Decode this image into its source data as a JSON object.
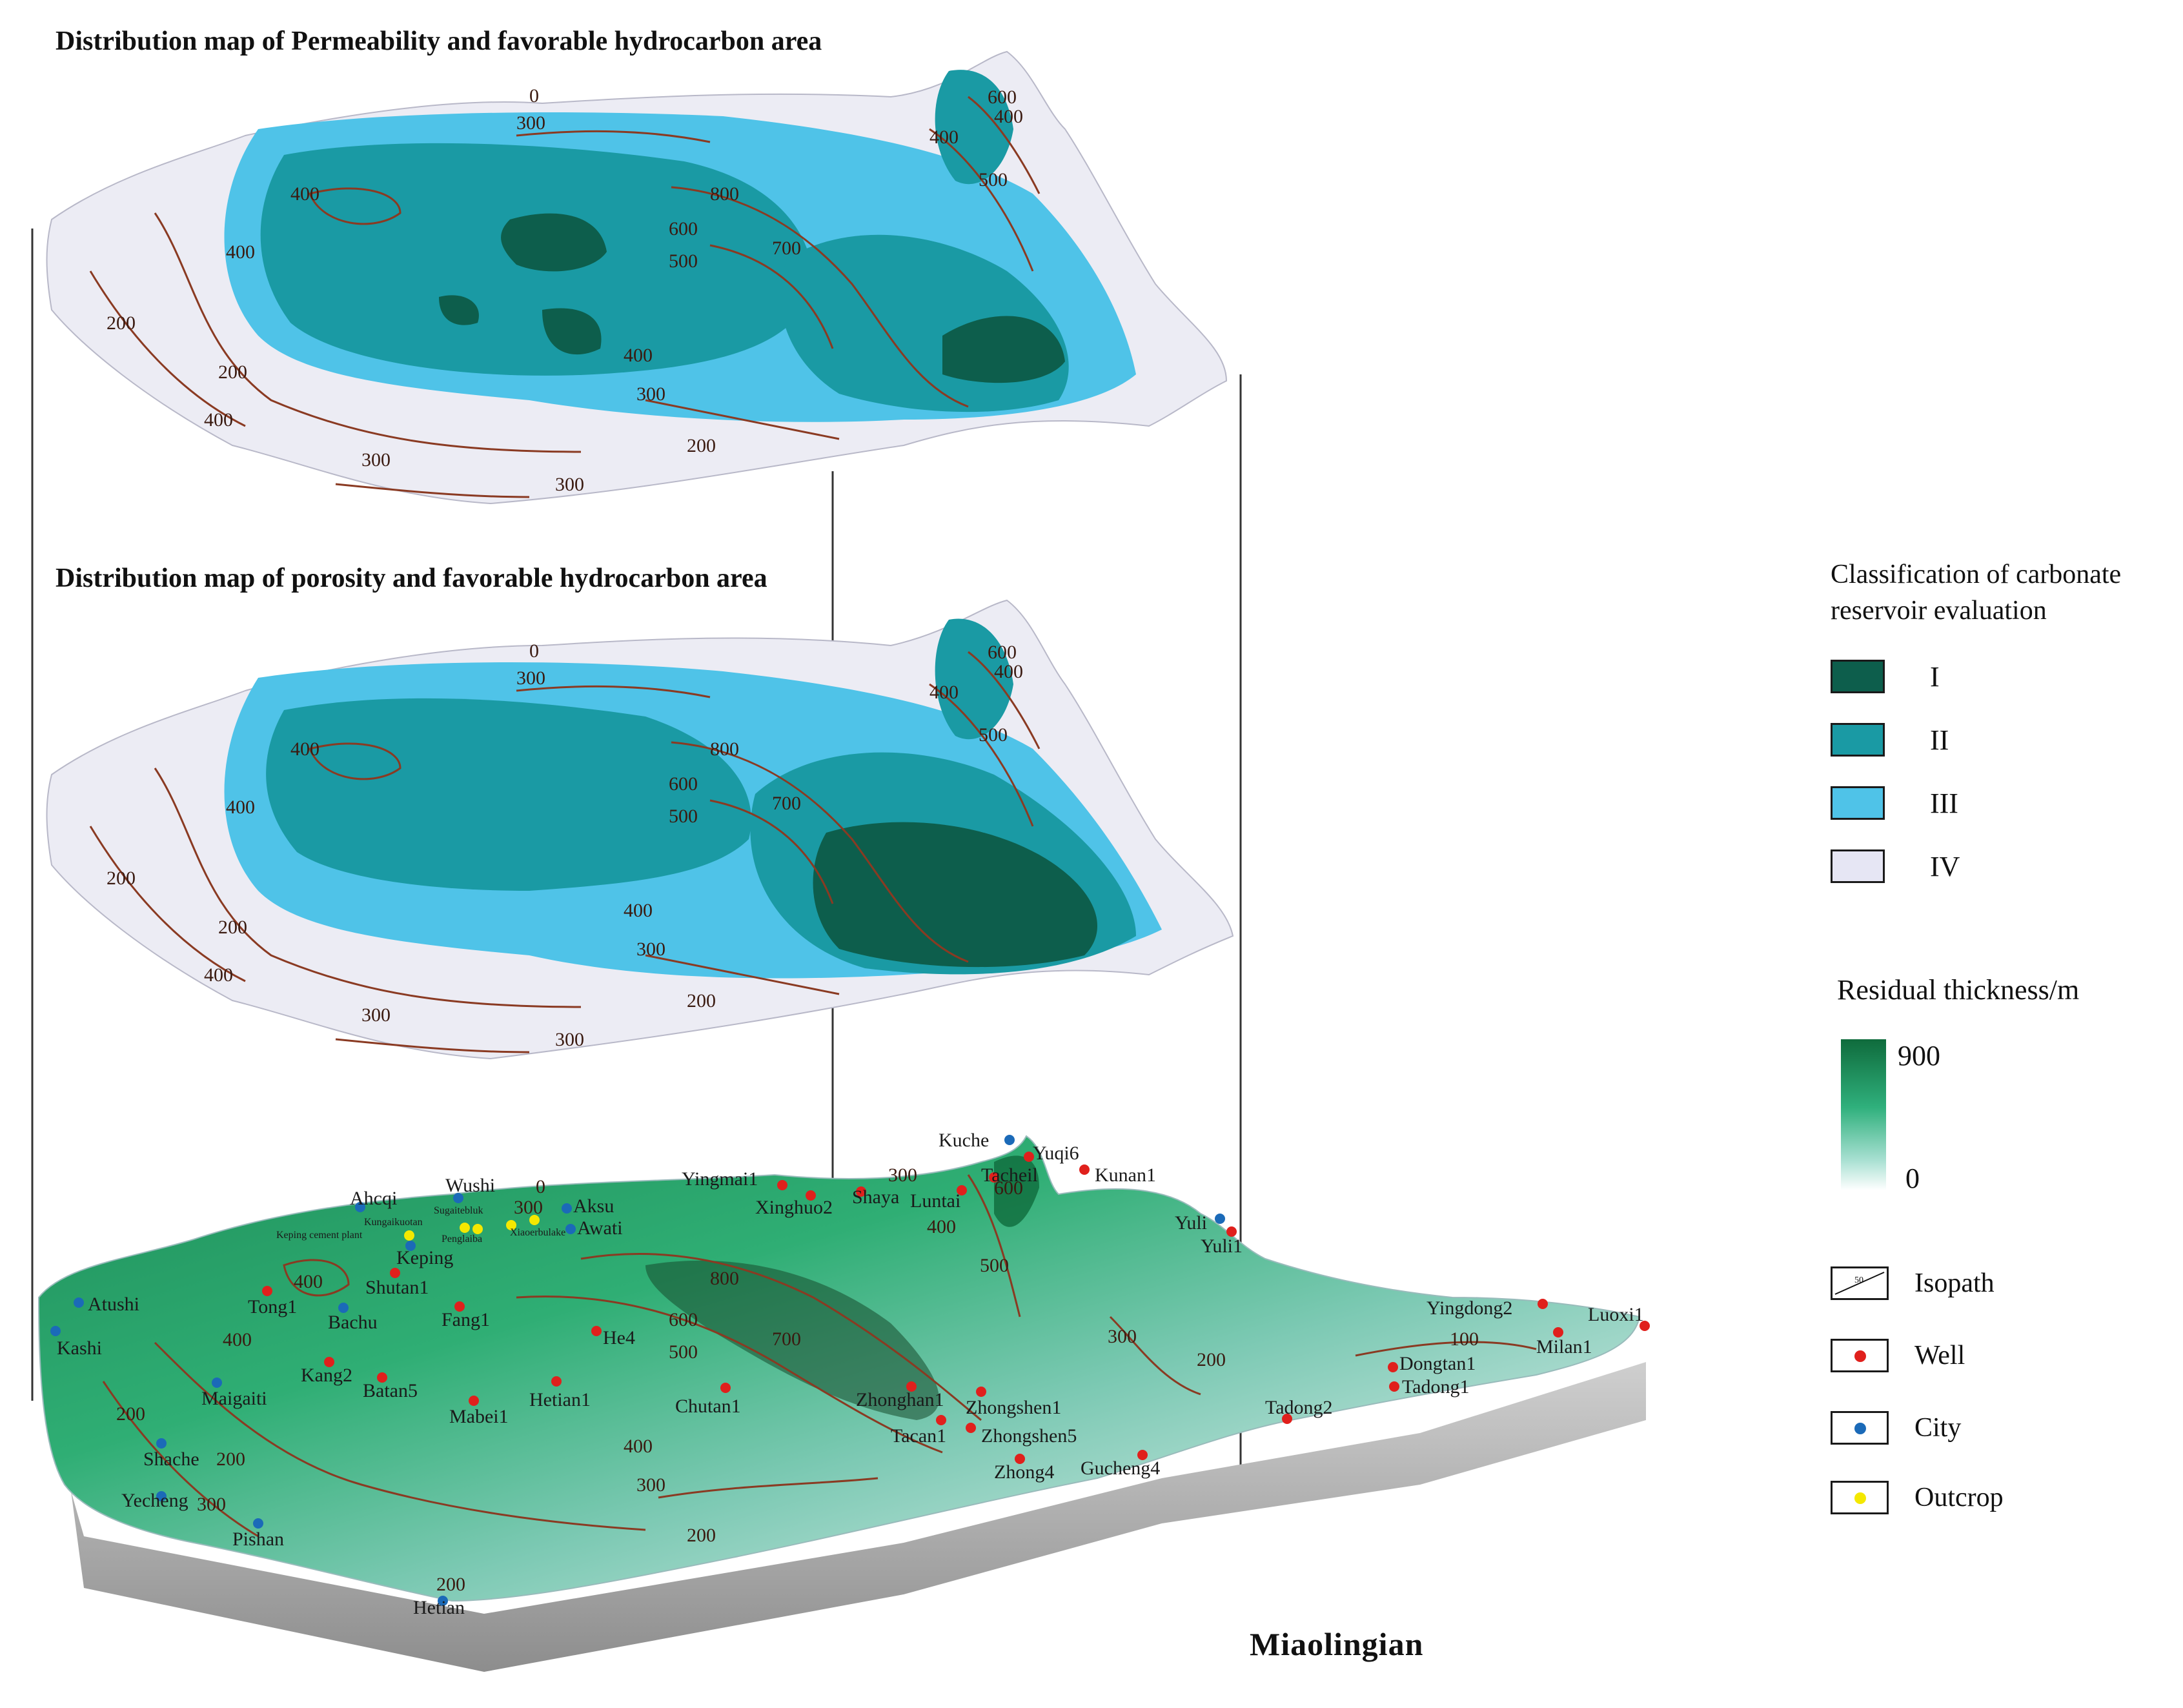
{
  "titles": {
    "permeability": "Distribution map of Permeability and favorable hydrocarbon area",
    "porosity": "Distribution map of porosity and favorable hydrocarbon area",
    "stage": "Miaolingian"
  },
  "legend": {
    "classification_title": "Classification of carbonate reservoir evaluation",
    "classes": [
      {
        "label": "I",
        "color": "#0d5e4c"
      },
      {
        "label": "II",
        "color": "#1a9aa4"
      },
      {
        "label": "III",
        "color": "#4fc3e8"
      },
      {
        "label": "IV",
        "color": "#e6e6f4"
      }
    ],
    "thickness_title": "Residual thickness/m",
    "thickness_max": "900",
    "thickness_min": "0",
    "isopath_sample": "50",
    "symbols": [
      {
        "label": "Isopath",
        "type": "isopath"
      },
      {
        "label": "Well",
        "type": "dot",
        "color": "#e0201c"
      },
      {
        "label": "City",
        "type": "dot",
        "color": "#1b6ab8"
      },
      {
        "label": "Outcrop",
        "type": "dot",
        "color": "#f4e800"
      }
    ]
  },
  "contours": {
    "perm": [
      "0",
      "300",
      "400",
      "400",
      "400",
      "200",
      "200",
      "400",
      "300",
      "300",
      "800",
      "600",
      "500",
      "700",
      "400",
      "300",
      "200",
      "400",
      "600",
      "500"
    ],
    "poro": [
      "0",
      "300",
      "400",
      "400",
      "400",
      "200",
      "200",
      "400",
      "300",
      "300",
      "800",
      "600",
      "500",
      "700",
      "400",
      "300",
      "200",
      "400",
      "600",
      "500"
    ],
    "base": [
      "300",
      "0",
      "300",
      "400",
      "400",
      "200",
      "200",
      "300",
      "800",
      "600",
      "500",
      "700",
      "400",
      "300",
      "200",
      "500",
      "600",
      "400",
      "300",
      "200",
      "100",
      "200"
    ]
  },
  "wells": [
    "Yingmai1",
    "Xinghuo2",
    "Shaya",
    "Luntai",
    "Yuqi6",
    "Tacheil",
    "Kunan1",
    "Yuli1",
    "Shutan1",
    "Tong1",
    "Fang1",
    "He4",
    "Kang2",
    "Batan5",
    "Mabei1",
    "Hetian1",
    "Chutan1",
    "Zhonghan1",
    "Zhongshen1",
    "Tacan1",
    "Zhongshen5",
    "Zhong4",
    "Gucheng4",
    "Tadong2",
    "Dongtan1",
    "Tadong1",
    "Yingdong2",
    "Milan1",
    "Luoxi1"
  ],
  "cities": [
    "Kuche",
    "Ahcqi",
    "Wushi",
    "Aksu",
    "Awati",
    "Keping",
    "Bachu",
    "Atushi",
    "Kashi",
    "Maigaiti",
    "Shache",
    "Yecheng",
    "Pishan",
    "Hetian",
    "Yuli"
  ],
  "outcrops": [
    "Sugaitebluk",
    "Kungaikuotan",
    "Keping cement plant",
    "Penglaiba",
    "Xiaoerbulake"
  ]
}
